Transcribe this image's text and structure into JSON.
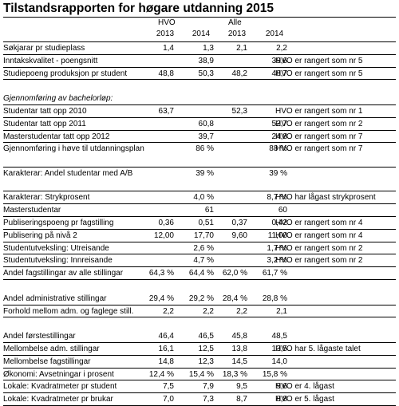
{
  "title": "Tilstandsrapporten for høgare utdanning 2015",
  "header": {
    "group_hvo": "HVO",
    "group_alle": "Alle",
    "years": [
      "2013",
      "2014",
      "2013",
      "2014"
    ]
  },
  "rows": [
    {
      "label": "Søkjarar pr studieplass",
      "v": [
        "1,4",
        "1,3",
        "2,1",
        "2,2"
      ],
      "note": ""
    },
    {
      "label": "Inntakskvalitet - poengsnitt",
      "v": [
        "",
        "38,9",
        "",
        "39,6"
      ],
      "note": "HVO er rangert som nr 5"
    },
    {
      "label": "Studiepoeng produksjon pr student",
      "v": [
        "48,8",
        "50,3",
        "48,2",
        "48,7"
      ],
      "note": "HVO er rangert som nr 5"
    },
    {
      "label": "",
      "v": [
        "",
        "",
        "",
        ""
      ],
      "note": "",
      "blank": true
    },
    {
      "label": "Gjennomføring av bachelorløp:",
      "v": [
        "",
        "",
        "",
        ""
      ],
      "note": "",
      "italic": true
    },
    {
      "label": "Studentar tatt opp 2010",
      "v": [
        "63,7",
        "",
        "52,3",
        ""
      ],
      "note": "HVO er rangert som nr 1"
    },
    {
      "label": "Studentar tatt opp 2011",
      "v": [
        "",
        "60,8",
        "",
        "52,7"
      ],
      "note": "HVO er rangert som nr 2"
    },
    {
      "label": "Masterstudentar tatt opp 2012",
      "v": [
        "",
        "39,7",
        "",
        "24,8"
      ],
      "note": "HVO er rangert som nr 7"
    },
    {
      "label": "Gjennomføring i høve til utdanningsplan",
      "v": [
        "",
        "86 %",
        "",
        "88 %"
      ],
      "note": "HVO er rangert som nr 7",
      "tall": true
    },
    {
      "label": "Karakterar: Andel studentar med A/B",
      "v": [
        "",
        "39 %",
        "",
        "39 %"
      ],
      "note": "",
      "tall": true
    },
    {
      "label": "Karakterar: Strykprosent",
      "v": [
        "",
        "4,0 %",
        "",
        "8,7 %"
      ],
      "note": "HVO har lågast strykprosent"
    },
    {
      "label": "Masterstudentar",
      "v": [
        "",
        "61",
        "",
        "60"
      ],
      "note": ""
    },
    {
      "label": "Publiseringspoeng pr fagstilling",
      "v": [
        "0,36",
        "0,51",
        "0,37",
        "0,42"
      ],
      "note": "HVO er rangert som nr 4"
    },
    {
      "label": "Publisering på nivå 2",
      "v": [
        "12,00",
        "17,70",
        "9,60",
        "11,00"
      ],
      "note": "HVO er rangert som nr 4"
    },
    {
      "label": "Studentutveksling: Utreisande",
      "v": [
        "",
        "2,6 %",
        "",
        "1,7 %"
      ],
      "note": "HVO er rangert som nr 2"
    },
    {
      "label": "Studentutveksling: Innreisande",
      "v": [
        "",
        "4,7 %",
        "",
        "3,2 %"
      ],
      "note": "HVO er rangert som nr 2"
    },
    {
      "label": "Andel fagstillingar av alle stillingar",
      "v": [
        "64,3 %",
        "64,4 %",
        "62,0 %",
        "61,7 %"
      ],
      "note": ""
    },
    {
      "label": "",
      "v": [
        "",
        "",
        "",
        ""
      ],
      "note": "",
      "blank": true
    },
    {
      "label": "Andel administrative stillingar",
      "v": [
        "29,4 %",
        "29,2 %",
        "28,4 %",
        "28,8 %"
      ],
      "note": ""
    },
    {
      "label": "Forhold mellom adm. og faglege still.",
      "v": [
        "2,2",
        "2,2",
        "2,2",
        "2,1"
      ],
      "note": ""
    },
    {
      "label": "",
      "v": [
        "",
        "",
        "",
        ""
      ],
      "note": "",
      "blank": true
    },
    {
      "label": "Andel førstestillingar",
      "v": [
        "46,4",
        "46,5",
        "45,8",
        "48,5"
      ],
      "note": ""
    },
    {
      "label": "Mellombelse adm. stillingar",
      "v": [
        "16,1",
        "12,5",
        "13,8",
        "13,5"
      ],
      "note": "HVO har 5. lågaste talet"
    },
    {
      "label": "Mellombelse fagstillingar",
      "v": [
        "14,8",
        "12,3",
        "14,5",
        "14,0"
      ],
      "note": ""
    },
    {
      "label": "Økonomi: Avsetningar i prosent",
      "v": [
        "12,4 %",
        "15,4 %",
        "18,3 %",
        "15,8 %"
      ],
      "note": ""
    },
    {
      "label": "Lokale: Kvadratmeter pr student",
      "v": [
        "7,5",
        "7,9",
        "9,5",
        "9,6"
      ],
      "note": "HVO er 4. lågast"
    },
    {
      "label": "Lokale: Kvadratmeter pr brukar",
      "v": [
        "7,0",
        "7,3",
        "8,7",
        "8,8"
      ],
      "note": "HVO er 5. lågast"
    }
  ]
}
